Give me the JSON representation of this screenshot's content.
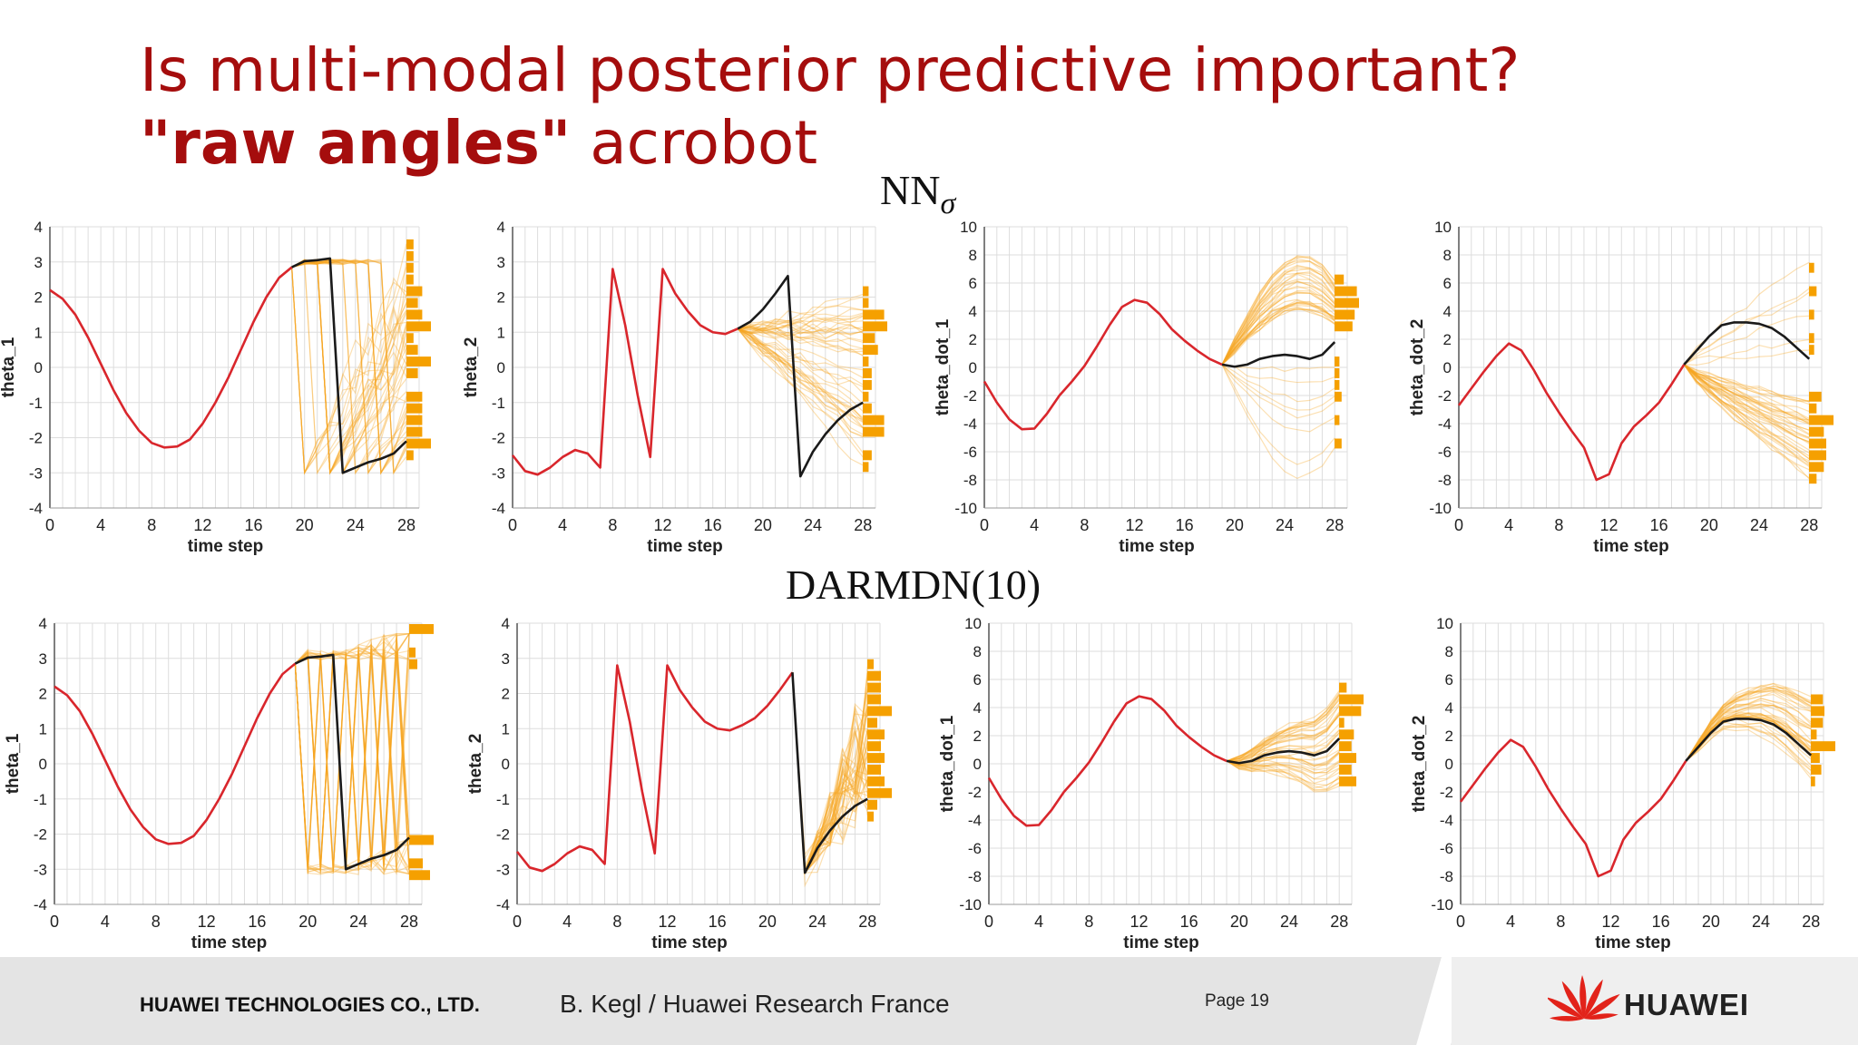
{
  "slide": {
    "title_line1": "Is multi-modal posterior predictive important?",
    "title_bold": "\"raw angles\"",
    "title_rest": " acrobot"
  },
  "footer": {
    "company": "HUAWEI TECHNOLOGIES CO., LTD.",
    "author": "B. Kegl / Huawei Research France",
    "page": "Page 19",
    "logo_text": "HUAWEI"
  },
  "colors": {
    "history": "#d9262c",
    "ground_truth": "#1a1a1a",
    "samples": "#f5a623",
    "histogram": "#f5a000",
    "title": "#a50d0d",
    "grid": "#dddddd"
  },
  "chart_data": [
    {
      "type": "line",
      "group": "NNσ",
      "xlabel": "time step",
      "ylabel": "theta_1",
      "xlim": [
        0,
        29
      ],
      "ylim": [
        -4,
        4
      ],
      "xticks": [
        0,
        4,
        8,
        12,
        16,
        20,
        24,
        28
      ],
      "yticks": [
        -4,
        -3,
        -2,
        -1,
        0,
        1,
        2,
        3,
        4
      ],
      "history": {
        "x": [
          0,
          1,
          2,
          3,
          4,
          5,
          6,
          7,
          8,
          9,
          10,
          11,
          12,
          13,
          14,
          15,
          16,
          17,
          18,
          19
        ],
        "y": [
          2.2,
          1.95,
          1.5,
          0.85,
          0.1,
          -0.65,
          -1.3,
          -1.8,
          -2.15,
          -2.28,
          -2.25,
          -2.05,
          -1.6,
          -1.0,
          -0.3,
          0.5,
          1.3,
          2.0,
          2.55,
          2.85
        ]
      },
      "ground_truth": {
        "x": [
          19,
          20,
          21,
          22,
          23,
          24,
          25,
          26,
          27,
          28
        ],
        "y": [
          2.85,
          3.02,
          3.05,
          3.1,
          -3.0,
          -2.85,
          -2.7,
          -2.6,
          -2.45,
          -2.1
        ]
      },
      "predictions": "wrap between +3 and -3 from step 20"
    },
    {
      "type": "line",
      "group": "NNσ",
      "xlabel": "time step",
      "ylabel": "theta_2",
      "xlim": [
        0,
        29
      ],
      "ylim": [
        -4,
        4
      ],
      "xticks": [
        0,
        4,
        8,
        12,
        16,
        20,
        24,
        28
      ],
      "yticks": [
        -4,
        -3,
        -2,
        -1,
        0,
        1,
        2,
        3,
        4
      ],
      "history": {
        "x": [
          0,
          1,
          2,
          3,
          4,
          5,
          6,
          7,
          8,
          9,
          10,
          11,
          12,
          13,
          14,
          15,
          16,
          17,
          18
        ],
        "y": [
          -2.5,
          -2.95,
          -3.05,
          -2.85,
          -2.55,
          -2.35,
          -2.45,
          -2.85,
          2.8,
          1.2,
          -0.8,
          -2.55,
          2.8,
          2.1,
          1.6,
          1.2,
          1.0,
          0.95,
          1.1
        ]
      },
      "ground_truth": {
        "x": [
          18,
          19,
          20,
          21,
          22,
          23,
          24,
          25,
          26,
          27,
          28
        ],
        "y": [
          1.1,
          1.3,
          1.65,
          2.1,
          2.6,
          -3.1,
          -2.4,
          -1.9,
          -1.5,
          -1.2,
          -1.0
        ]
      },
      "predictions": "fan out between -3 and 2.5 from step 18"
    },
    {
      "type": "line",
      "group": "NNσ",
      "xlabel": "time step",
      "ylabel": "theta_dot_1",
      "xlim": [
        0,
        29
      ],
      "ylim": [
        -10,
        10
      ],
      "xticks": [
        0,
        4,
        8,
        12,
        16,
        20,
        24,
        28
      ],
      "yticks": [
        -10,
        -8,
        -6,
        -4,
        -2,
        0,
        2,
        4,
        6,
        8,
        10
      ],
      "history": {
        "x": [
          0,
          1,
          2,
          3,
          4,
          5,
          6,
          7,
          8,
          9,
          10,
          11,
          12,
          13,
          14,
          15,
          16,
          17,
          18,
          19
        ],
        "y": [
          -1.0,
          -2.5,
          -3.7,
          -4.4,
          -4.35,
          -3.3,
          -2.0,
          -1.0,
          0.1,
          1.5,
          3.0,
          4.3,
          4.8,
          4.6,
          3.8,
          2.7,
          1.9,
          1.2,
          0.6,
          0.2
        ]
      },
      "ground_truth": {
        "x": [
          19,
          20,
          21,
          22,
          23,
          24,
          25,
          26,
          27,
          28
        ],
        "y": [
          0.2,
          0.05,
          0.2,
          0.6,
          0.8,
          0.9,
          0.8,
          0.6,
          0.9,
          1.8
        ]
      },
      "predictions": "mostly rising to 4-6, some falling to -6"
    },
    {
      "type": "line",
      "group": "NNσ",
      "xlabel": "time step",
      "ylabel": "theta_dot_2",
      "xlim": [
        0,
        29
      ],
      "ylim": [
        -10,
        10
      ],
      "xticks": [
        0,
        4,
        8,
        12,
        16,
        20,
        24,
        28
      ],
      "yticks": [
        -10,
        -8,
        -6,
        -4,
        -2,
        0,
        2,
        4,
        6,
        8,
        10
      ],
      "history": {
        "x": [
          0,
          1,
          2,
          3,
          4,
          5,
          6,
          7,
          8,
          9,
          10,
          11,
          12,
          13,
          14,
          15,
          16,
          17,
          18
        ],
        "y": [
          -2.7,
          -1.5,
          -0.3,
          0.8,
          1.7,
          1.2,
          -0.2,
          -1.8,
          -3.2,
          -4.5,
          -5.7,
          -8.0,
          -7.6,
          -5.4,
          -4.2,
          -3.4,
          -2.5,
          -1.2,
          0.2
        ]
      },
      "ground_truth": {
        "x": [
          18,
          19,
          20,
          21,
          22,
          23,
          24,
          25,
          26,
          27,
          28
        ],
        "y": [
          0.2,
          1.2,
          2.2,
          3.0,
          3.2,
          3.2,
          3.1,
          2.8,
          2.2,
          1.4,
          0.6
        ]
      },
      "predictions": "mostly falling to -4 to -8"
    },
    {
      "type": "line",
      "group": "DARMDN(10)",
      "xlabel": "time step",
      "ylabel": "theta_1",
      "xlim": [
        0,
        29
      ],
      "ylim": [
        -4,
        4
      ],
      "xticks": [
        0,
        4,
        8,
        12,
        16,
        20,
        24,
        28
      ],
      "yticks": [
        -4,
        -3,
        -2,
        -1,
        0,
        1,
        2,
        3,
        4
      ],
      "history": {
        "x": [
          0,
          1,
          2,
          3,
          4,
          5,
          6,
          7,
          8,
          9,
          10,
          11,
          12,
          13,
          14,
          15,
          16,
          17,
          18,
          19
        ],
        "y": [
          2.2,
          1.95,
          1.5,
          0.85,
          0.1,
          -0.65,
          -1.3,
          -1.8,
          -2.15,
          -2.28,
          -2.25,
          -2.05,
          -1.6,
          -1.0,
          -0.3,
          0.5,
          1.3,
          2.0,
          2.55,
          2.85
        ]
      },
      "ground_truth": {
        "x": [
          19,
          20,
          21,
          22,
          23,
          24,
          25,
          26,
          27,
          28
        ],
        "y": [
          2.85,
          3.02,
          3.05,
          3.1,
          -3.0,
          -2.85,
          -2.7,
          -2.6,
          -2.45,
          -2.1
        ]
      },
      "predictions": "bimodal clusters near +3 and -3"
    },
    {
      "type": "line",
      "group": "DARMDN(10)",
      "xlabel": "time step",
      "ylabel": "theta_2",
      "xlim": [
        0,
        29
      ],
      "ylim": [
        -4,
        4
      ],
      "xticks": [
        0,
        4,
        8,
        12,
        16,
        20,
        24,
        28
      ],
      "yticks": [
        -4,
        -3,
        -2,
        -1,
        0,
        1,
        2,
        3,
        4
      ],
      "history": {
        "x": [
          0,
          1,
          2,
          3,
          4,
          5,
          6,
          7,
          8,
          9,
          10,
          11,
          12,
          13,
          14,
          15,
          16,
          17,
          18,
          19,
          20,
          21,
          22
        ],
        "y": [
          -2.5,
          -2.95,
          -3.05,
          -2.85,
          -2.55,
          -2.35,
          -2.45,
          -2.85,
          2.8,
          1.2,
          -0.8,
          -2.55,
          2.8,
          2.1,
          1.6,
          1.2,
          1.0,
          0.95,
          1.1,
          1.3,
          1.65,
          2.1,
          2.6
        ]
      },
      "ground_truth": {
        "x": [
          22,
          23,
          24,
          25,
          26,
          27,
          28
        ],
        "y": [
          2.6,
          -3.1,
          -2.4,
          -1.9,
          -1.5,
          -1.2,
          -1.0
        ]
      },
      "predictions": "tight around truth, spread up to 3"
    },
    {
      "type": "line",
      "group": "DARMDN(10)",
      "xlabel": "time step",
      "ylabel": "theta_dot_1",
      "xlim": [
        0,
        29
      ],
      "ylim": [
        -10,
        10
      ],
      "xticks": [
        0,
        4,
        8,
        12,
        16,
        20,
        24,
        28
      ],
      "yticks": [
        -10,
        -8,
        -6,
        -4,
        -2,
        0,
        2,
        4,
        6,
        8,
        10
      ],
      "history": {
        "x": [
          0,
          1,
          2,
          3,
          4,
          5,
          6,
          7,
          8,
          9,
          10,
          11,
          12,
          13,
          14,
          15,
          16,
          17,
          18,
          19
        ],
        "y": [
          -1.0,
          -2.5,
          -3.7,
          -4.4,
          -4.35,
          -3.3,
          -2.0,
          -1.0,
          0.1,
          1.5,
          3.0,
          4.3,
          4.8,
          4.6,
          3.8,
          2.7,
          1.9,
          1.2,
          0.6,
          0.2
        ]
      },
      "ground_truth": {
        "x": [
          19,
          20,
          21,
          22,
          23,
          24,
          25,
          26,
          27,
          28
        ],
        "y": [
          0.2,
          0.05,
          0.2,
          0.6,
          0.8,
          0.9,
          0.8,
          0.6,
          0.9,
          1.8
        ]
      },
      "predictions": "centered near truth, -5 to 3"
    },
    {
      "type": "line",
      "group": "DARMDN(10)",
      "xlabel": "time step",
      "ylabel": "theta_dot_2",
      "xlim": [
        0,
        29
      ],
      "ylim": [
        -10,
        10
      ],
      "xticks": [
        0,
        4,
        8,
        12,
        16,
        20,
        24,
        28
      ],
      "yticks": [
        -10,
        -8,
        -6,
        -4,
        -2,
        0,
        2,
        4,
        6,
        8,
        10
      ],
      "history": {
        "x": [
          0,
          1,
          2,
          3,
          4,
          5,
          6,
          7,
          8,
          9,
          10,
          11,
          12,
          13,
          14,
          15,
          16,
          17,
          18
        ],
        "y": [
          -2.7,
          -1.5,
          -0.3,
          0.8,
          1.7,
          1.2,
          -0.2,
          -1.8,
          -3.2,
          -4.5,
          -5.7,
          -8.0,
          -7.6,
          -5.4,
          -4.2,
          -3.4,
          -2.5,
          -1.2,
          0.2
        ]
      },
      "ground_truth": {
        "x": [
          18,
          19,
          20,
          21,
          22,
          23,
          24,
          25,
          26,
          27,
          28
        ],
        "y": [
          0.2,
          1.2,
          2.2,
          3.0,
          3.2,
          3.2,
          3.1,
          2.8,
          2.2,
          1.4,
          0.6
        ]
      },
      "predictions": "centered near truth, 0 to 7"
    }
  ],
  "chart_headers": [
    "NN",
    "σ",
    "DARMDN(10)"
  ]
}
